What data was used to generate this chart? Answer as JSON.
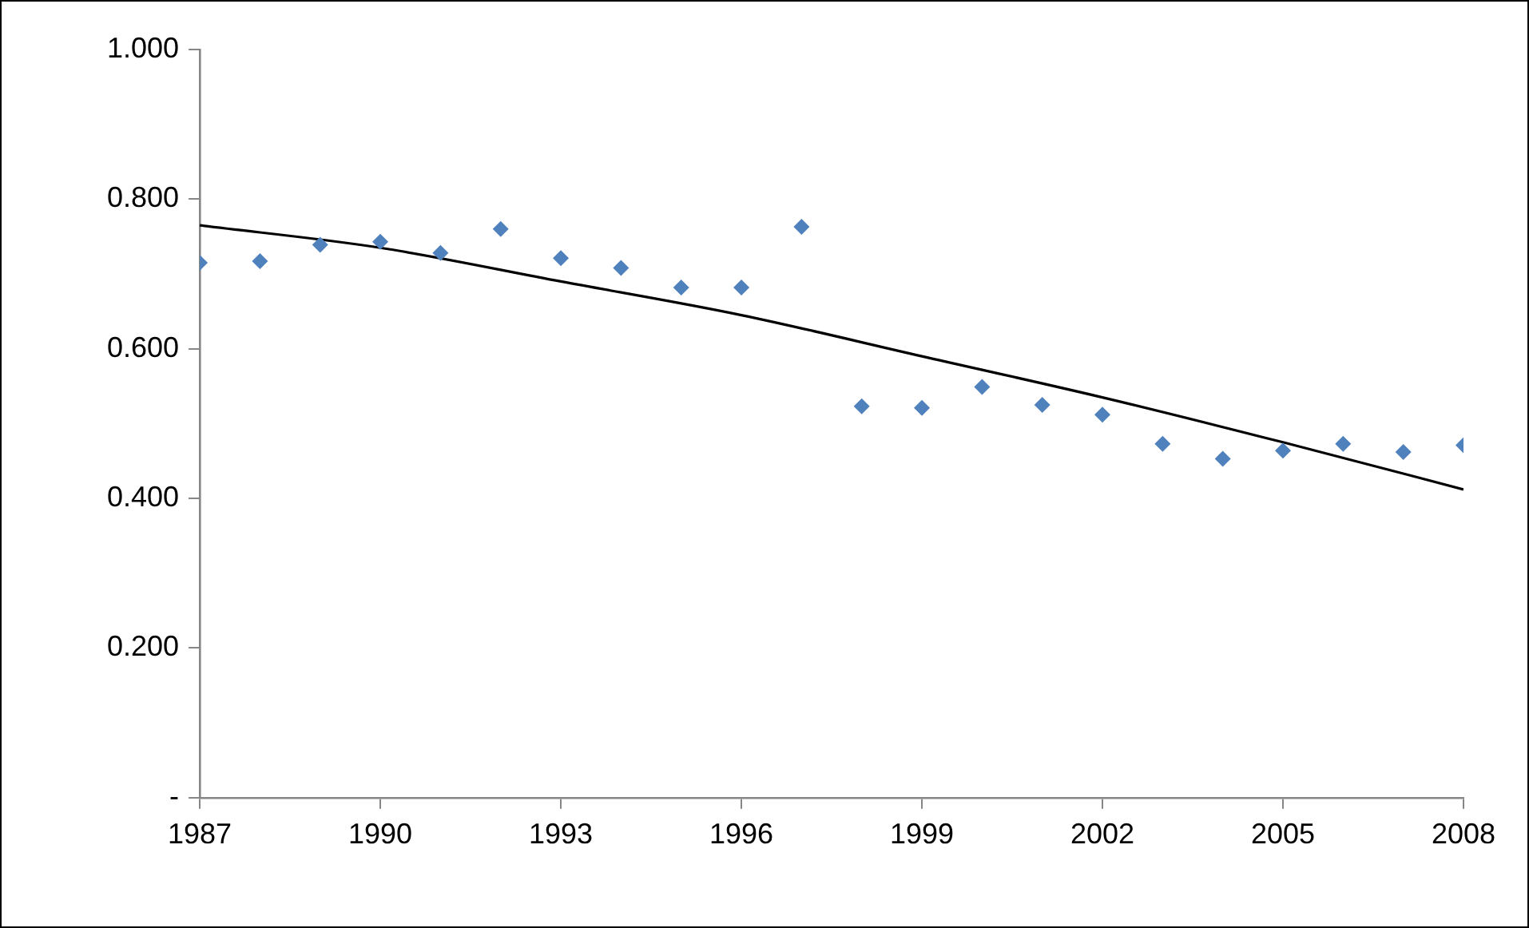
{
  "chart_data": {
    "type": "scatter",
    "grid": false,
    "legend": false,
    "xlim": [
      1987,
      2008
    ],
    "xticks": [
      1987,
      1990,
      1993,
      1996,
      1999,
      2002,
      2005,
      2008
    ],
    "ylim": [
      0,
      1
    ],
    "yticks": [
      {
        "value": 0,
        "label": "-"
      },
      {
        "value": 0.2,
        "label": "0.200"
      },
      {
        "value": 0.4,
        "label": "0.400"
      },
      {
        "value": 0.6,
        "label": "0.600"
      },
      {
        "value": 0.8,
        "label": "0.800"
      },
      {
        "value": 1,
        "label": "1.000"
      }
    ],
    "series": [
      {
        "marker": "diamond",
        "color": "#4f81bd",
        "x": [
          1987,
          1988,
          1989,
          1990,
          1991,
          1992,
          1993,
          1994,
          1995,
          1996,
          1997,
          1998,
          1999,
          2000,
          2001,
          2002,
          2003,
          2004,
          2005,
          2006,
          2007,
          2008
        ],
        "values": [
          0.715,
          0.717,
          0.739,
          0.743,
          0.728,
          0.76,
          0.721,
          0.708,
          0.682,
          0.682,
          0.763,
          0.523,
          0.521,
          0.549,
          0.525,
          0.512,
          0.473,
          0.453,
          0.464,
          0.473,
          0.462,
          0.471
        ]
      },
      {
        "type": "line",
        "marker": "none",
        "color": "#000000",
        "x": [
          1987,
          1990,
          1993,
          1996,
          1999,
          2002,
          2005,
          2008
        ],
        "values": [
          0.765,
          0.735,
          0.69,
          0.645,
          0.59,
          0.535,
          0.475,
          0.412
        ]
      }
    ]
  }
}
